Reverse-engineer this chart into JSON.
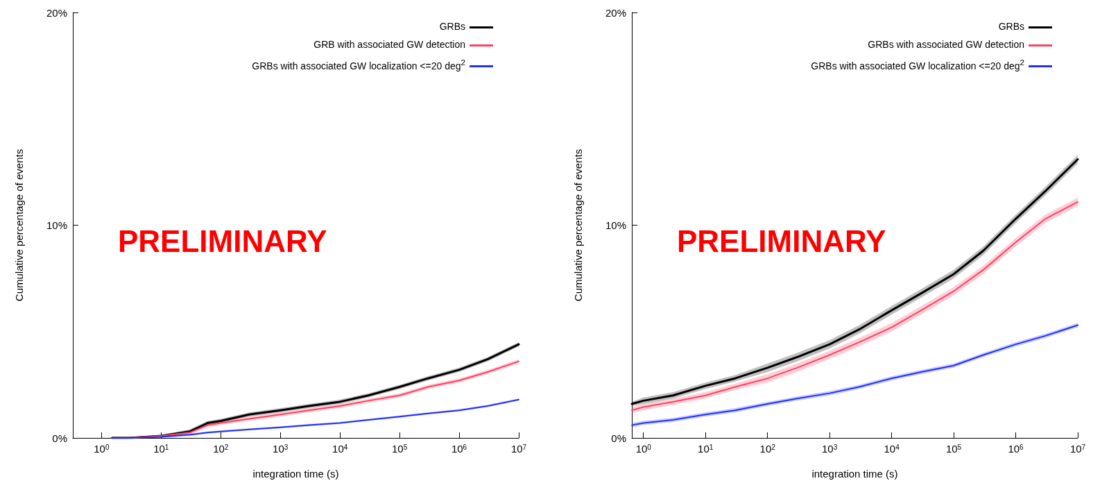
{
  "chart_data": [
    {
      "type": "line",
      "xlabel": "integration time (s)",
      "ylabel": "Cumulative percentage of events",
      "log": "x",
      "grid": false,
      "legend": "top right",
      "marker": "none",
      "line_style": "solid",
      "annotations": [
        "PRELIMINARY"
      ],
      "xlim": [
        0.33,
        10000000
      ],
      "xticks": [
        {
          "value": 1,
          "label": "10$^{0}$"
        },
        {
          "value": 10,
          "label": "10$^{1}$"
        },
        {
          "value": 100,
          "label": "10$^{2}$"
        },
        {
          "value": 1000,
          "label": "10$^{3}$"
        },
        {
          "value": 10000,
          "label": "10$^{4}$"
        },
        {
          "value": 100000,
          "label": "10$^{5}$"
        },
        {
          "value": 1000000,
          "label": "10$^{6}$"
        },
        {
          "value": 10000000,
          "label": "10$^{7}$"
        }
      ],
      "ylim": [
        0,
        20
      ],
      "yticks": [
        {
          "value": 0,
          "label": "0%"
        },
        {
          "value": 10,
          "label": "10%"
        },
        {
          "value": 20,
          "label": "20%"
        }
      ],
      "x": [
        1.5,
        3,
        10,
        30,
        60,
        100,
        300,
        1000,
        3000,
        10000,
        30000,
        100000,
        300000,
        1000000,
        3000000,
        10000000
      ],
      "series": [
        {
          "name": "GRBs",
          "color": "#000000",
          "values": [
            0,
            0,
            0.1,
            0.3,
            0.7,
            0.8,
            1.1,
            1.3,
            1.5,
            1.7,
            2.0,
            2.4,
            2.8,
            3.2,
            3.7,
            4.4
          ],
          "lower": [
            0,
            0,
            0.05,
            0.2,
            0.6,
            0.7,
            1.0,
            1.2,
            1.4,
            1.6,
            1.9,
            2.3,
            2.7,
            3.1,
            3.6,
            4.3
          ],
          "upper": [
            0.05,
            0.05,
            0.15,
            0.4,
            0.8,
            0.9,
            1.2,
            1.4,
            1.6,
            1.8,
            2.1,
            2.5,
            2.9,
            3.3,
            3.8,
            4.5
          ]
        },
        {
          "name": "GRB with associated GW detection",
          "color": "#ff4060",
          "values": [
            0,
            0,
            0.1,
            0.25,
            0.6,
            0.7,
            0.9,
            1.1,
            1.3,
            1.5,
            1.75,
            2.0,
            2.4,
            2.7,
            3.1,
            3.6
          ],
          "lower": [
            0,
            0,
            0.05,
            0.15,
            0.5,
            0.6,
            0.8,
            1.0,
            1.2,
            1.4,
            1.65,
            1.9,
            2.3,
            2.6,
            3.0,
            3.5
          ],
          "upper": [
            0.05,
            0.05,
            0.15,
            0.35,
            0.7,
            0.8,
            1.0,
            1.2,
            1.4,
            1.6,
            1.85,
            2.1,
            2.5,
            2.8,
            3.2,
            3.7
          ]
        },
        {
          "name": "GRBs with associated GW localization <=20 deg$^{2}$",
          "color": "#2030ff",
          "values": [
            0,
            0,
            0.05,
            0.15,
            0.25,
            0.3,
            0.4,
            0.5,
            0.6,
            0.7,
            0.85,
            1.0,
            1.15,
            1.3,
            1.5,
            1.8
          ],
          "lower": [
            0,
            0,
            0,
            0.1,
            0.2,
            0.25,
            0.35,
            0.45,
            0.55,
            0.65,
            0.8,
            0.95,
            1.1,
            1.25,
            1.45,
            1.75
          ],
          "upper": [
            0.05,
            0.05,
            0.1,
            0.2,
            0.3,
            0.35,
            0.45,
            0.55,
            0.65,
            0.75,
            0.9,
            1.05,
            1.2,
            1.35,
            1.55,
            1.85
          ]
        }
      ]
    },
    {
      "type": "line",
      "xlabel": "integration time (s)",
      "ylabel": "Cumulative percentage of events",
      "log": "x",
      "grid": false,
      "legend": "top right",
      "marker": "none",
      "line_style": "solid",
      "annotations": [
        "PRELIMINARY"
      ],
      "xlim": [
        0.65,
        10000000
      ],
      "xticks": [
        {
          "value": 1,
          "label": "10$^{0}$"
        },
        {
          "value": 10,
          "label": "10$^{1}$"
        },
        {
          "value": 100,
          "label": "10$^{2}$"
        },
        {
          "value": 1000,
          "label": "10$^{3}$"
        },
        {
          "value": 10000,
          "label": "10$^{4}$"
        },
        {
          "value": 100000,
          "label": "10$^{5}$"
        },
        {
          "value": 1000000,
          "label": "10$^{6}$"
        },
        {
          "value": 10000000,
          "label": "10$^{7}$"
        }
      ],
      "ylim": [
        0,
        20
      ],
      "yticks": [
        {
          "value": 0,
          "label": "0%"
        },
        {
          "value": 10,
          "label": "10%"
        },
        {
          "value": 20,
          "label": "20%"
        }
      ],
      "x": [
        0.65,
        1,
        3,
        10,
        30,
        100,
        300,
        1000,
        3000,
        10000,
        30000,
        100000,
        300000,
        1000000,
        3000000,
        10000000
      ],
      "series": [
        {
          "name": "GRBs",
          "color": "#000000",
          "values": [
            1.6,
            1.75,
            2.0,
            2.45,
            2.8,
            3.3,
            3.8,
            4.4,
            5.1,
            6.0,
            6.8,
            7.7,
            8.8,
            10.3,
            11.6,
            13.1
          ],
          "lower": [
            1.5,
            1.6,
            1.85,
            2.3,
            2.65,
            3.1,
            3.6,
            4.2,
            4.9,
            5.8,
            6.6,
            7.5,
            8.6,
            10.1,
            11.4,
            12.9
          ],
          "upper": [
            1.7,
            1.9,
            2.15,
            2.6,
            2.95,
            3.5,
            4.0,
            4.6,
            5.3,
            6.2,
            7.0,
            7.9,
            9.0,
            10.5,
            11.8,
            13.3
          ]
        },
        {
          "name": "GRBs with associated GW detection",
          "color": "#ff4060",
          "values": [
            1.3,
            1.45,
            1.7,
            2.0,
            2.4,
            2.8,
            3.3,
            3.9,
            4.5,
            5.2,
            6.0,
            6.9,
            7.9,
            9.2,
            10.3,
            11.1
          ],
          "lower": [
            1.15,
            1.3,
            1.55,
            1.85,
            2.25,
            2.6,
            3.1,
            3.7,
            4.3,
            5.0,
            5.8,
            6.7,
            7.7,
            9.0,
            10.1,
            10.9
          ],
          "upper": [
            1.45,
            1.6,
            1.85,
            2.15,
            2.55,
            3.0,
            3.5,
            4.1,
            4.7,
            5.4,
            6.2,
            7.1,
            8.1,
            9.4,
            10.5,
            11.3
          ]
        },
        {
          "name": "GRBs with associated GW localization <=20 deg$^{2}$",
          "color": "#2030ff",
          "values": [
            0.6,
            0.7,
            0.85,
            1.1,
            1.3,
            1.6,
            1.85,
            2.1,
            2.4,
            2.8,
            3.1,
            3.4,
            3.9,
            4.4,
            4.8,
            5.3
          ],
          "lower": [
            0.5,
            0.6,
            0.75,
            1.0,
            1.2,
            1.5,
            1.75,
            2.0,
            2.3,
            2.7,
            3.0,
            3.3,
            3.8,
            4.3,
            4.7,
            5.2
          ],
          "upper": [
            0.7,
            0.8,
            0.95,
            1.2,
            1.4,
            1.7,
            1.95,
            2.2,
            2.5,
            2.9,
            3.2,
            3.5,
            4.0,
            4.5,
            4.9,
            5.4
          ]
        }
      ]
    }
  ]
}
